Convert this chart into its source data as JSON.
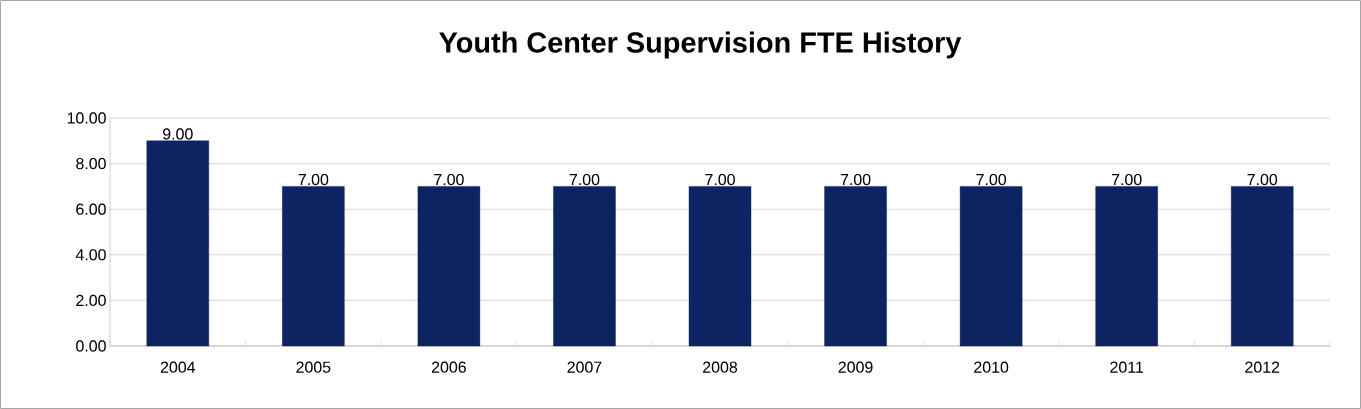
{
  "chart_data": {
    "type": "bar",
    "title": "Youth Center Supervision FTE History",
    "categories": [
      "2004",
      "2005",
      "2006",
      "2007",
      "2008",
      "2009",
      "2010",
      "2011",
      "2012"
    ],
    "values": [
      9,
      7,
      7,
      7,
      7,
      7,
      7,
      7,
      7
    ],
    "value_labels": [
      "9.00",
      "7.00",
      "7.00",
      "7.00",
      "7.00",
      "7.00",
      "7.00",
      "7.00",
      "7.00"
    ],
    "color": "#0c2461",
    "ylim": [
      0,
      10
    ],
    "yticks": [
      {
        "value": 0,
        "label": "0.00"
      },
      {
        "value": 2,
        "label": "2.00"
      },
      {
        "value": 4,
        "label": "4.00"
      },
      {
        "value": 6,
        "label": "6.00"
      },
      {
        "value": 8,
        "label": "8.00"
      },
      {
        "value": 10,
        "label": "10.00"
      }
    ],
    "grid": "y"
  }
}
